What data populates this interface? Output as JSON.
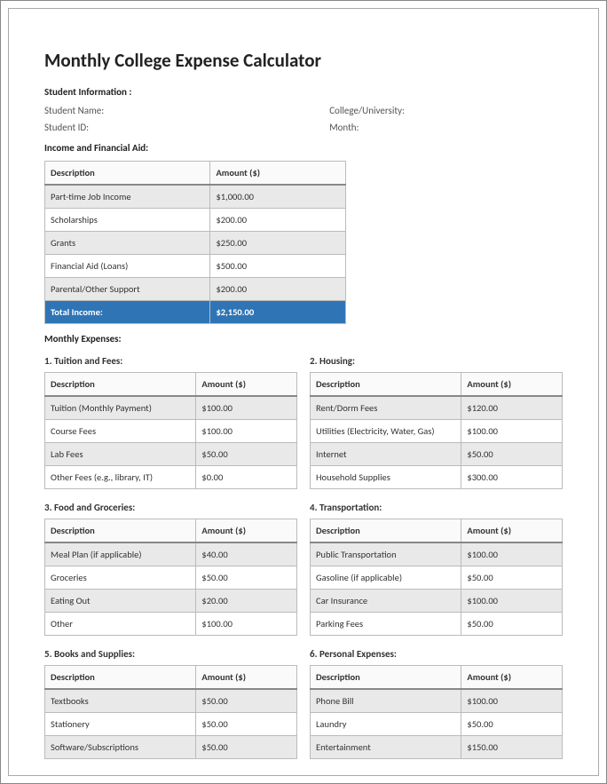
{
  "header": {
    "title": "Monthly College Expense Calculator"
  },
  "student_info": {
    "section_label": "Student Information :",
    "name_label": "Student Name:",
    "college_label": "College/University:",
    "id_label": "Student ID:",
    "month_label": "Month:"
  },
  "income": {
    "section_label": "Income and Financial Aid:",
    "columns": [
      "Description",
      "Amount ($)"
    ],
    "rows": [
      {
        "desc": "Part-time Job Income",
        "amount": "$1,000.00"
      },
      {
        "desc": "Scholarships",
        "amount": "$200.00"
      },
      {
        "desc": "Grants",
        "amount": "$250.00"
      },
      {
        "desc": "Financial Aid (Loans)",
        "amount": "$500.00"
      },
      {
        "desc": "Parental/Other Support",
        "amount": "$200.00"
      }
    ],
    "total_label": "Total Income:",
    "total_value": "$2,150.00"
  },
  "expenses": {
    "section_label": "Monthly Expenses:",
    "columns": [
      "Description",
      "Amount ($)"
    ],
    "groups": [
      {
        "title": "1. Tuition and Fees:",
        "rows": [
          {
            "desc": "Tuition (Monthly Payment)",
            "amount": "$100.00"
          },
          {
            "desc": "Course Fees",
            "amount": "$100.00"
          },
          {
            "desc": "Lab Fees",
            "amount": "$50.00"
          },
          {
            "desc": "Other Fees (e.g., library, IT)",
            "amount": "$0.00"
          }
        ]
      },
      {
        "title": "2. Housing:",
        "rows": [
          {
            "desc": "Rent/Dorm Fees",
            "amount": "$120.00"
          },
          {
            "desc": "Utilities (Electricity, Water, Gas)",
            "amount": "$100.00"
          },
          {
            "desc": "Internet",
            "amount": "$50.00"
          },
          {
            "desc": "Household Supplies",
            "amount": "$300.00"
          }
        ]
      },
      {
        "title": "3. Food and Groceries:",
        "rows": [
          {
            "desc": "Meal Plan (if applicable)",
            "amount": "$40.00"
          },
          {
            "desc": "Groceries",
            "amount": "$50.00"
          },
          {
            "desc": "Eating Out",
            "amount": "$20.00"
          },
          {
            "desc": "Other",
            "amount": "$100.00"
          }
        ]
      },
      {
        "title": "4. Transportation:",
        "rows": [
          {
            "desc": "Public Transportation",
            "amount": "$100.00"
          },
          {
            "desc": "Gasoline (if applicable)",
            "amount": "$50.00"
          },
          {
            "desc": "Car Insurance",
            "amount": "$100.00"
          },
          {
            "desc": "Parking Fees",
            "amount": "$50.00"
          }
        ]
      },
      {
        "title": "5. Books and Supplies:",
        "rows": [
          {
            "desc": "Textbooks",
            "amount": "$50.00"
          },
          {
            "desc": "Stationery",
            "amount": "$50.00"
          },
          {
            "desc": "Software/Subscriptions",
            "amount": "$50.00"
          }
        ]
      },
      {
        "title": "6. Personal Expenses:",
        "rows": [
          {
            "desc": "Phone Bill",
            "amount": "$100.00"
          },
          {
            "desc": "Laundry",
            "amount": "$50.00"
          },
          {
            "desc": "Entertainment",
            "amount": "$150.00"
          }
        ]
      }
    ]
  }
}
